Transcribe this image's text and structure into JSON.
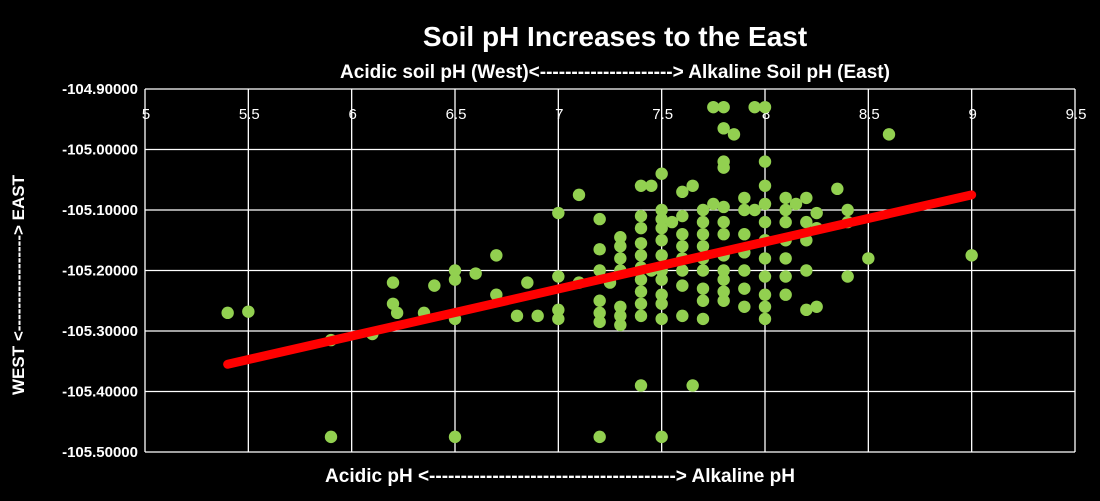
{
  "chart_data": {
    "type": "scatter",
    "title": "Soil pH Increases to the East",
    "subtitle": "Acidic soil pH (West)<---------------------> Alkaline Soil pH (East)",
    "xlabel": "Acidic pH <---------------------------------------> Alkaline pH",
    "ylabel": "WEST <-----------------> EAST",
    "xlim": [
      5,
      9.5
    ],
    "ylim": [
      -105.5,
      -104.9
    ],
    "x_ticks": [
      "5",
      "5.5",
      "6",
      "6.5",
      "7",
      "7.5",
      "8",
      "8.5",
      "9",
      "9.5"
    ],
    "y_ticks": [
      "-104.90000",
      "-105.00000",
      "-105.10000",
      "-105.20000",
      "-105.30000",
      "-105.40000",
      "-105.50000"
    ],
    "grid": true,
    "colors": {
      "background": "#000000",
      "points": "#92d050",
      "trendline": "#ff0000",
      "text": "#ffffff"
    },
    "trendline": {
      "x": [
        5.4,
        9.0
      ],
      "y": [
        -105.355,
        -105.075
      ]
    },
    "points": [
      [
        5.4,
        -105.27
      ],
      [
        5.5,
        -105.268
      ],
      [
        5.9,
        -105.315
      ],
      [
        5.9,
        -105.475
      ],
      [
        6.1,
        -105.305
      ],
      [
        6.2,
        -105.22
      ],
      [
        6.2,
        -105.255
      ],
      [
        6.22,
        -105.27
      ],
      [
        6.35,
        -105.27
      ],
      [
        6.4,
        -105.225
      ],
      [
        6.5,
        -105.2
      ],
      [
        6.5,
        -105.215
      ],
      [
        6.5,
        -105.28
      ],
      [
        6.5,
        -105.475
      ],
      [
        6.6,
        -105.205
      ],
      [
        6.7,
        -105.175
      ],
      [
        6.7,
        -105.24
      ],
      [
        6.8,
        -105.275
      ],
      [
        6.85,
        -105.22
      ],
      [
        6.9,
        -105.275
      ],
      [
        7.0,
        -105.105
      ],
      [
        7.0,
        -105.21
      ],
      [
        7.0,
        -105.265
      ],
      [
        7.0,
        -105.28
      ],
      [
        7.1,
        -105.075
      ],
      [
        7.1,
        -105.22
      ],
      [
        7.2,
        -105.115
      ],
      [
        7.2,
        -105.165
      ],
      [
        7.2,
        -105.2
      ],
      [
        7.2,
        -105.25
      ],
      [
        7.2,
        -105.27
      ],
      [
        7.2,
        -105.285
      ],
      [
        7.2,
        -105.475
      ],
      [
        7.25,
        -105.22
      ],
      [
        7.3,
        -105.145
      ],
      [
        7.3,
        -105.16
      ],
      [
        7.3,
        -105.18
      ],
      [
        7.3,
        -105.2
      ],
      [
        7.3,
        -105.26
      ],
      [
        7.3,
        -105.275
      ],
      [
        7.3,
        -105.29
      ],
      [
        7.4,
        -105.06
      ],
      [
        7.4,
        -105.11
      ],
      [
        7.4,
        -105.13
      ],
      [
        7.4,
        -105.155
      ],
      [
        7.4,
        -105.175
      ],
      [
        7.4,
        -105.195
      ],
      [
        7.4,
        -105.215
      ],
      [
        7.4,
        -105.235
      ],
      [
        7.4,
        -105.255
      ],
      [
        7.4,
        -105.275
      ],
      [
        7.4,
        -105.39
      ],
      [
        7.45,
        -105.06
      ],
      [
        7.45,
        -105.2
      ],
      [
        7.5,
        -105.04
      ],
      [
        7.5,
        -105.1
      ],
      [
        7.5,
        -105.115
      ],
      [
        7.5,
        -105.13
      ],
      [
        7.5,
        -105.15
      ],
      [
        7.5,
        -105.175
      ],
      [
        7.5,
        -105.2
      ],
      [
        7.5,
        -105.215
      ],
      [
        7.5,
        -105.24
      ],
      [
        7.5,
        -105.255
      ],
      [
        7.5,
        -105.28
      ],
      [
        7.5,
        -105.475
      ],
      [
        7.55,
        -105.12
      ],
      [
        7.6,
        -105.07
      ],
      [
        7.6,
        -105.11
      ],
      [
        7.6,
        -105.14
      ],
      [
        7.6,
        -105.16
      ],
      [
        7.6,
        -105.18
      ],
      [
        7.6,
        -105.2
      ],
      [
        7.6,
        -105.225
      ],
      [
        7.6,
        -105.275
      ],
      [
        7.65,
        -105.06
      ],
      [
        7.65,
        -105.39
      ],
      [
        7.7,
        -105.1
      ],
      [
        7.7,
        -105.12
      ],
      [
        7.7,
        -105.14
      ],
      [
        7.7,
        -105.16
      ],
      [
        7.7,
        -105.18
      ],
      [
        7.7,
        -105.2
      ],
      [
        7.7,
        -105.23
      ],
      [
        7.7,
        -105.25
      ],
      [
        7.7,
        -105.28
      ],
      [
        7.75,
        -104.93
      ],
      [
        7.75,
        -105.09
      ],
      [
        7.8,
        -104.93
      ],
      [
        7.8,
        -104.965
      ],
      [
        7.8,
        -105.02
      ],
      [
        7.8,
        -105.03
      ],
      [
        7.8,
        -105.095
      ],
      [
        7.8,
        -105.12
      ],
      [
        7.8,
        -105.14
      ],
      [
        7.8,
        -105.175
      ],
      [
        7.8,
        -105.2
      ],
      [
        7.8,
        -105.215
      ],
      [
        7.8,
        -105.235
      ],
      [
        7.8,
        -105.25
      ],
      [
        7.85,
        -104.975
      ],
      [
        7.9,
        -105.08
      ],
      [
        7.9,
        -105.1
      ],
      [
        7.9,
        -105.14
      ],
      [
        7.9,
        -105.17
      ],
      [
        7.9,
        -105.2
      ],
      [
        7.9,
        -105.23
      ],
      [
        7.9,
        -105.26
      ],
      [
        7.95,
        -104.93
      ],
      [
        7.95,
        -105.1
      ],
      [
        8.0,
        -104.93
      ],
      [
        8.0,
        -105.02
      ],
      [
        8.0,
        -105.06
      ],
      [
        8.0,
        -105.09
      ],
      [
        8.0,
        -105.12
      ],
      [
        8.0,
        -105.15
      ],
      [
        8.0,
        -105.18
      ],
      [
        8.0,
        -105.21
      ],
      [
        8.0,
        -105.24
      ],
      [
        8.0,
        -105.26
      ],
      [
        8.0,
        -105.28
      ],
      [
        8.1,
        -105.08
      ],
      [
        8.1,
        -105.1
      ],
      [
        8.1,
        -105.12
      ],
      [
        8.1,
        -105.15
      ],
      [
        8.1,
        -105.18
      ],
      [
        8.1,
        -105.21
      ],
      [
        8.1,
        -105.24
      ],
      [
        8.15,
        -105.09
      ],
      [
        8.2,
        -105.08
      ],
      [
        8.2,
        -105.12
      ],
      [
        8.2,
        -105.15
      ],
      [
        8.2,
        -105.2
      ],
      [
        8.2,
        -105.265
      ],
      [
        8.25,
        -105.105
      ],
      [
        8.25,
        -105.13
      ],
      [
        8.25,
        -105.26
      ],
      [
        8.35,
        -105.065
      ],
      [
        8.4,
        -105.1
      ],
      [
        8.4,
        -105.12
      ],
      [
        8.4,
        -105.21
      ],
      [
        8.5,
        -105.18
      ],
      [
        8.6,
        -104.975
      ],
      [
        9.0,
        -105.175
      ]
    ]
  }
}
